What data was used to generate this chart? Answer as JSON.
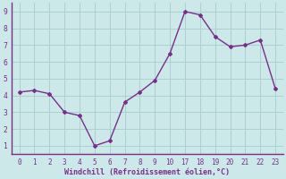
{
  "xlabels": [
    "0",
    "1",
    "2",
    "3",
    "4",
    "5",
    "6",
    "7",
    "8",
    "9",
    "10",
    "17",
    "18",
    "19",
    "20",
    "21",
    "22",
    "23"
  ],
  "y": [
    4.2,
    4.3,
    4.1,
    3.0,
    2.8,
    1.0,
    1.3,
    3.6,
    4.2,
    4.9,
    6.5,
    9.0,
    8.8,
    7.5,
    6.9,
    7.0,
    7.3,
    4.4
  ],
  "yticks": [
    1,
    2,
    3,
    4,
    5,
    6,
    7,
    8,
    9
  ],
  "ylim": [
    0.5,
    9.5
  ],
  "xlabel": "Windchill (Refroidissement éolien,°C)",
  "line_color": "#7b2d8b",
  "marker": "D",
  "markersize": 2.0,
  "bg_color": "#cce8e8",
  "grid_color": "#aad0d0",
  "label_color": "#7b2d8b",
  "linewidth": 1.0,
  "xlabel_fontsize": 6.0,
  "tick_fontsize": 5.5
}
